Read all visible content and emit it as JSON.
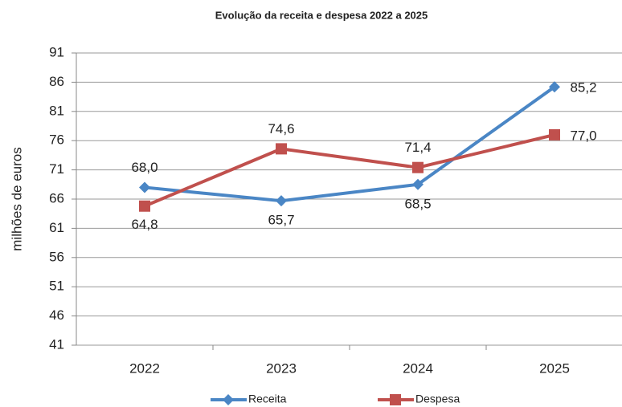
{
  "chart_data": {
    "type": "line",
    "title": "Evolução da receita e despesa 2022 a 2025",
    "y_label": "milhões de euros",
    "categories": [
      "2022",
      "2023",
      "2024",
      "2025"
    ],
    "series": [
      {
        "name": "Receita",
        "color": "#4a86c5",
        "marker": "diamond",
        "values": [
          68.0,
          65.7,
          68.5,
          85.2
        ],
        "value_labels": [
          "68,0",
          "65,7",
          "68,5",
          "85,2"
        ]
      },
      {
        "name": "Despesa",
        "color": "#c0504d",
        "marker": "square",
        "values": [
          64.8,
          74.6,
          71.4,
          77.0
        ],
        "value_labels": [
          "64,8",
          "74,6",
          "71,4",
          "77,0"
        ]
      }
    ],
    "ylim": [
      41,
      91
    ],
    "yticks": [
      41,
      46,
      51,
      56,
      61,
      66,
      71,
      76,
      81,
      86,
      91
    ],
    "grid": true,
    "legend": "bottom"
  }
}
